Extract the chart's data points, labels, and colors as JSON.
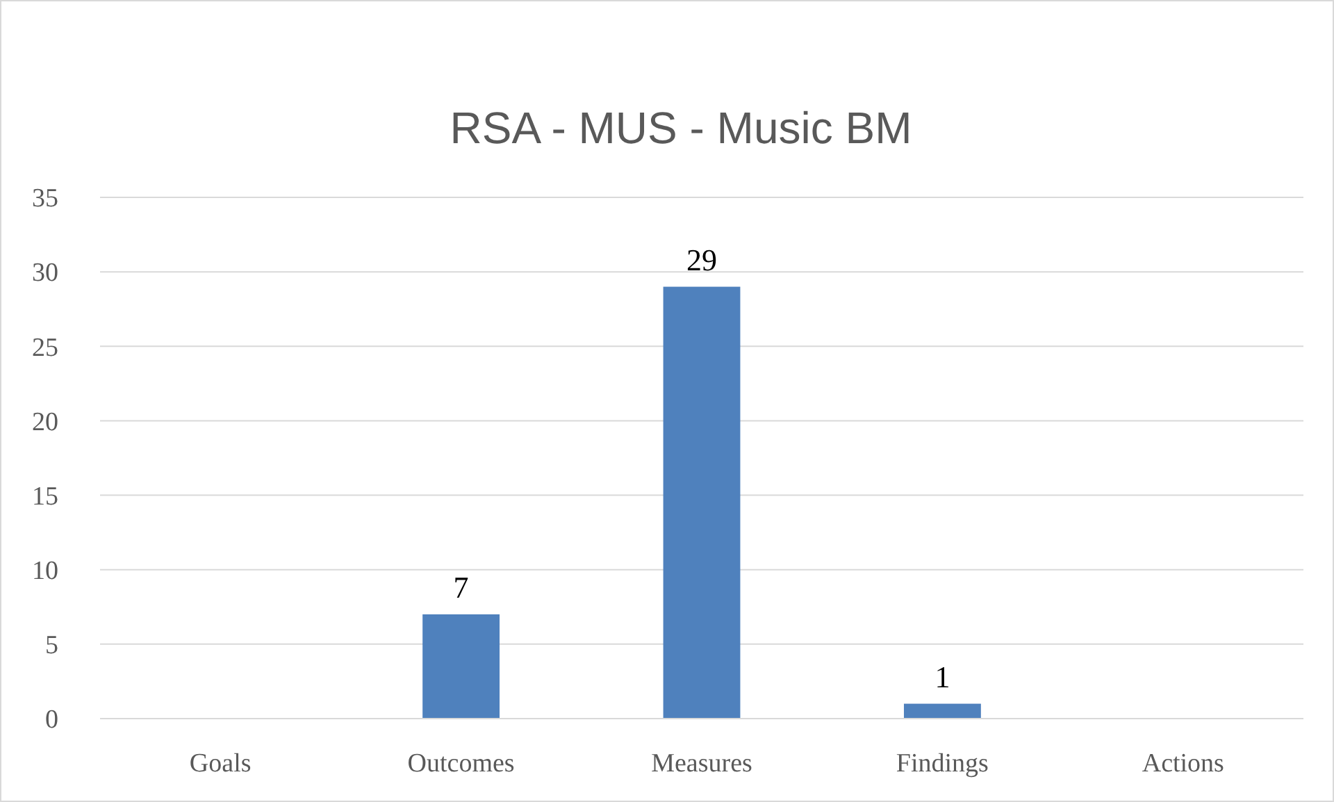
{
  "chart_data": {
    "type": "bar",
    "title": "RSA - MUS - Music BM",
    "categories": [
      "Goals",
      "Outcomes",
      "Measures",
      "Findings",
      "Actions"
    ],
    "values": [
      0,
      7,
      29,
      1,
      0
    ],
    "value_labels": [
      null,
      "7",
      "29",
      "1",
      null
    ],
    "color": "#4f81bd",
    "ylim": [
      0,
      35
    ],
    "yticks": [
      0,
      5,
      10,
      15,
      20,
      25,
      30,
      35
    ],
    "grid": "y"
  }
}
